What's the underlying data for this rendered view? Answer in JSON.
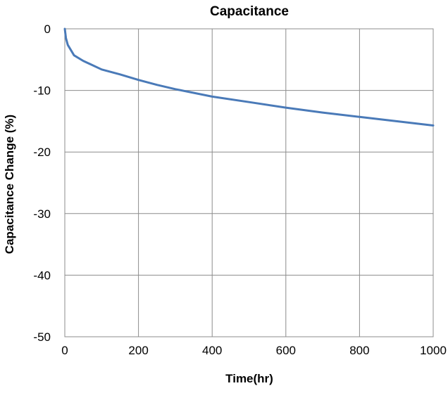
{
  "chart_data": {
    "type": "line",
    "title": "Capacitance",
    "xlabel": "Time(hr)",
    "ylabel": "Capacitance Change (%)",
    "xlim": [
      0,
      1000
    ],
    "ylim": [
      -50,
      0
    ],
    "xticks": [
      0,
      200,
      400,
      600,
      800,
      1000
    ],
    "yticks": [
      0,
      -10,
      -20,
      -30,
      -40,
      -50
    ],
    "xtick_labels": [
      "0",
      "200",
      "400",
      "600",
      "800",
      "1000"
    ],
    "ytick_labels": [
      "0",
      "-10",
      "-20",
      "-30",
      "-40",
      "-50"
    ],
    "grid": true,
    "legend": "none",
    "series": [
      {
        "color": "#4a7ab8",
        "x": [
          0,
          3,
          8,
          25,
          50,
          100,
          150,
          200,
          250,
          300,
          400,
          500,
          600,
          700,
          800,
          900,
          1000
        ],
        "y": [
          0,
          -1.5,
          -2.6,
          -4.3,
          -5.2,
          -6.6,
          -7.4,
          -8.3,
          -9.1,
          -9.8,
          -11.0,
          -11.9,
          -12.8,
          -13.6,
          -14.3,
          -15.0,
          -15.7
        ]
      }
    ]
  }
}
